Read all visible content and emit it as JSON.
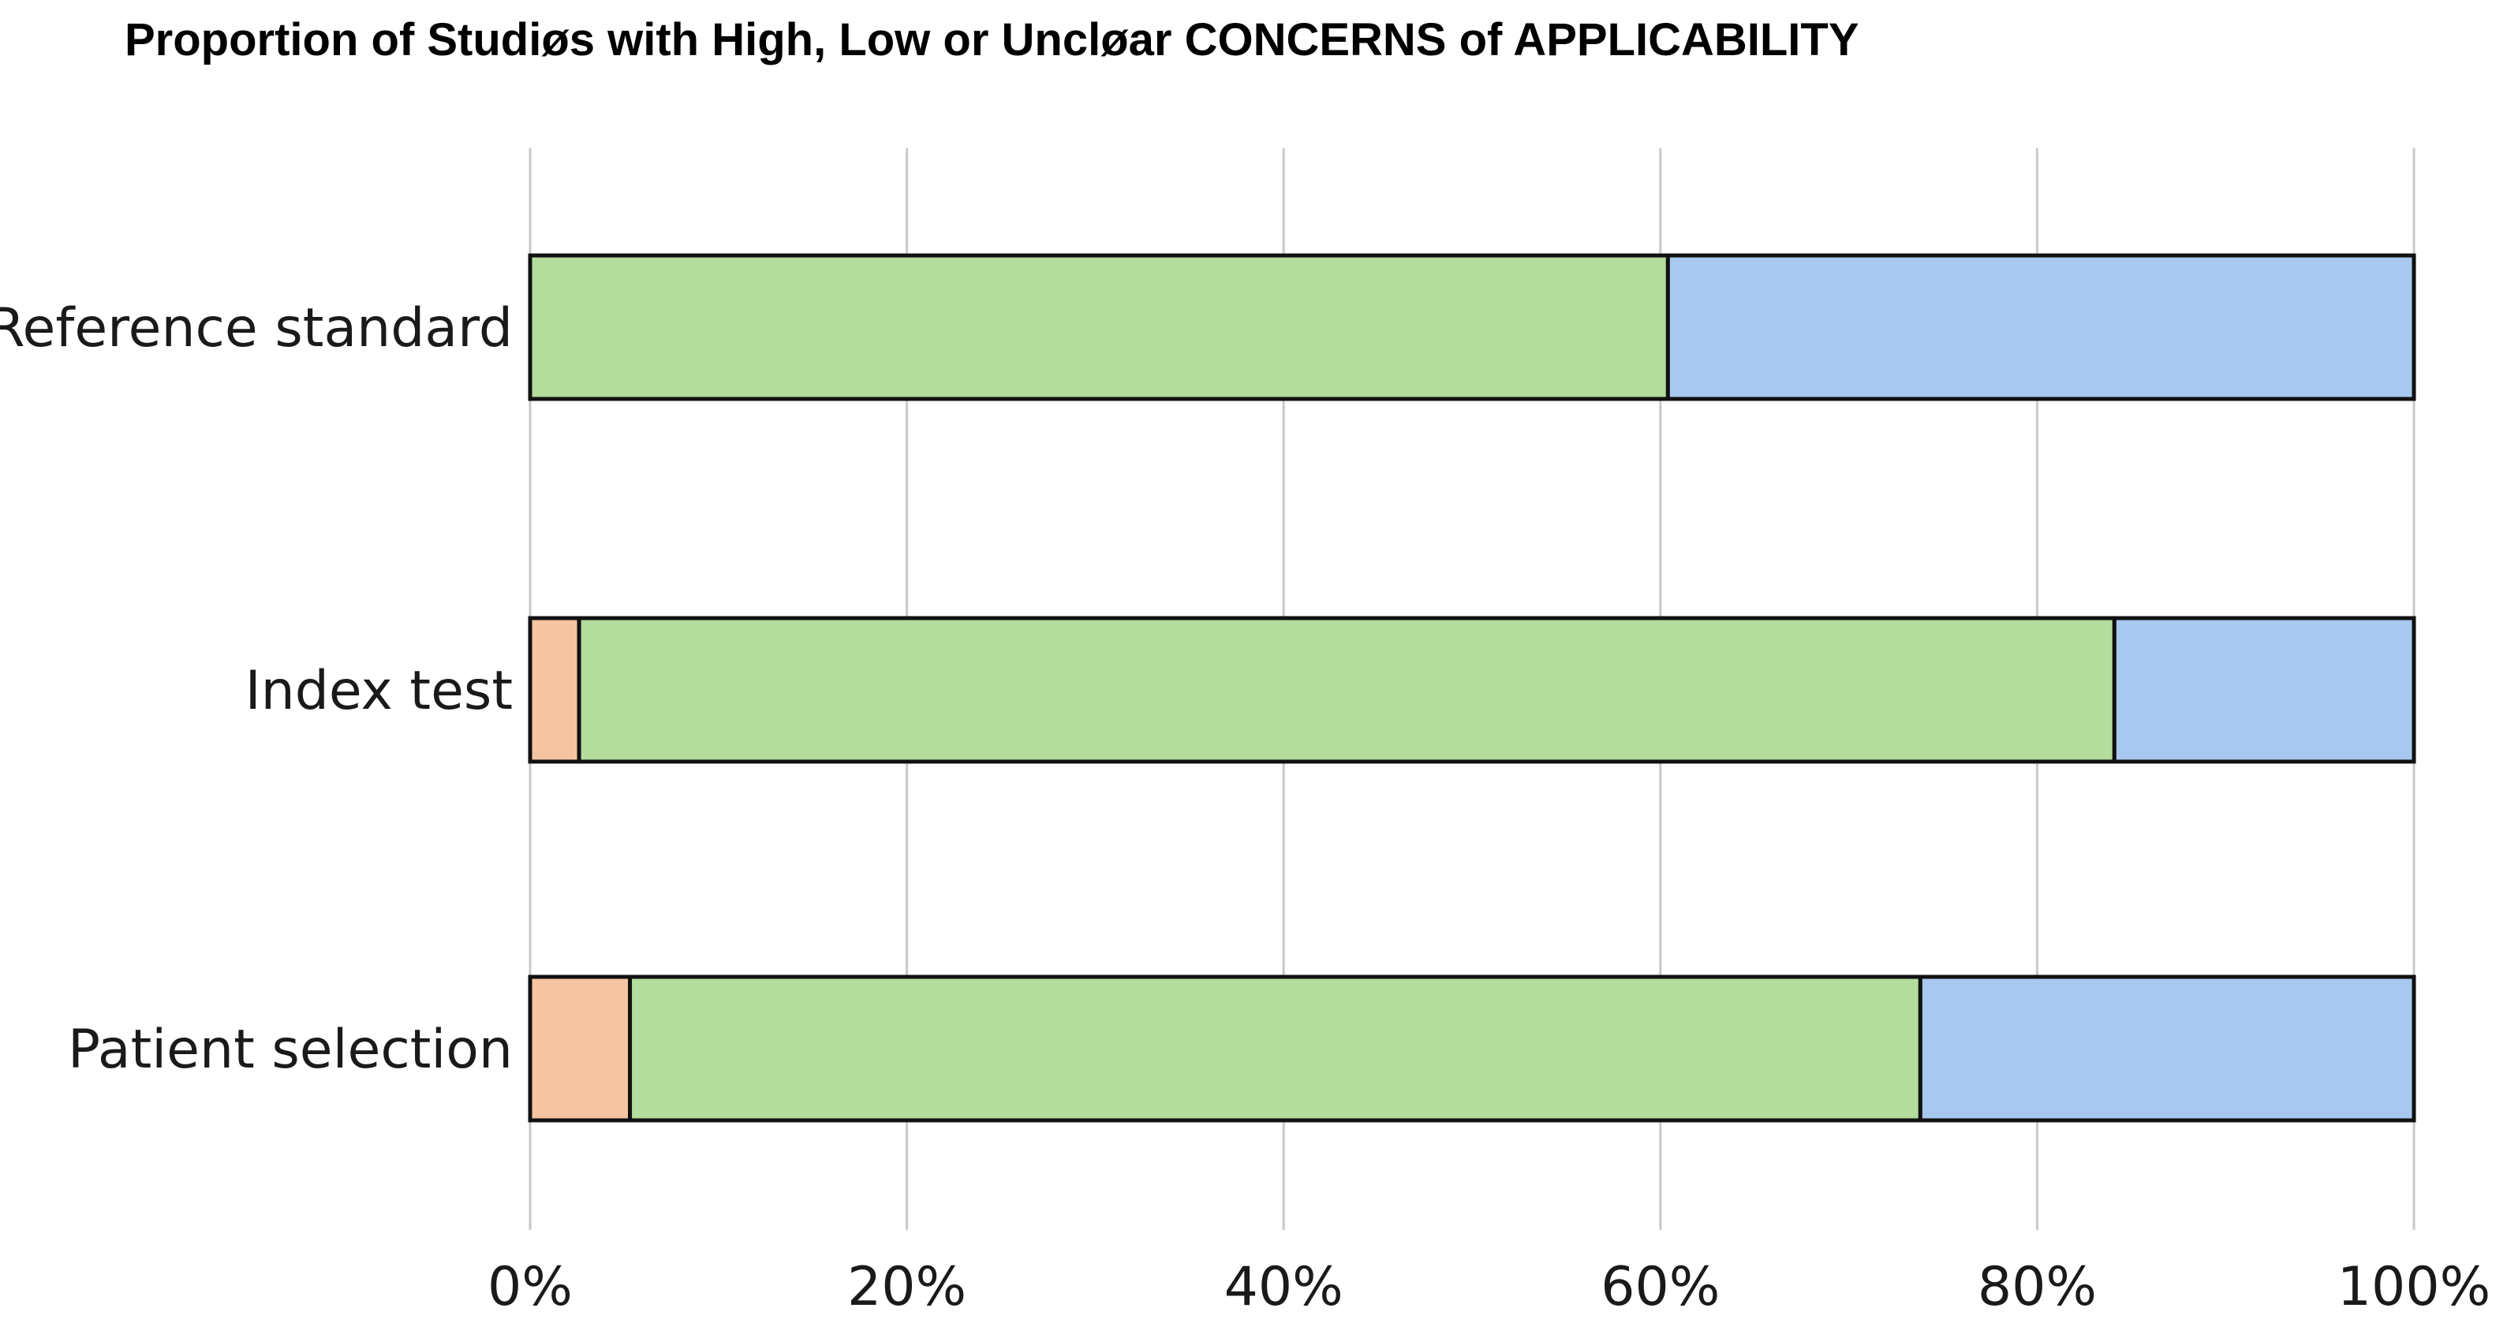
{
  "chart_data": {
    "type": "bar",
    "orientation": "horizontal",
    "stacked": true,
    "title": "Proportion of Studiøs with High, Low or Uncløar CONCERNS of APPLICABILITY",
    "xlabel": "",
    "ylabel": "",
    "xlim": [
      0,
      100
    ],
    "x_ticks": [
      "0%",
      "20%",
      "40%",
      "60%",
      "80%",
      "100%"
    ],
    "x_tick_values": [
      0,
      20,
      40,
      60,
      80,
      100
    ],
    "grid": true,
    "legend": "none",
    "categories": [
      "Reference standard",
      "Index test",
      "Patient selection"
    ],
    "series": [
      {
        "key": "high",
        "color": "#f5c4a0",
        "values": [
          0,
          2.6,
          5.3
        ]
      },
      {
        "key": "low",
        "color": "#b3dc9d",
        "values": [
          60.4,
          81.5,
          68.5
        ]
      },
      {
        "key": "unclear",
        "color": "#a8c8ef",
        "values": [
          39.6,
          15.9,
          26.2
        ]
      }
    ]
  }
}
